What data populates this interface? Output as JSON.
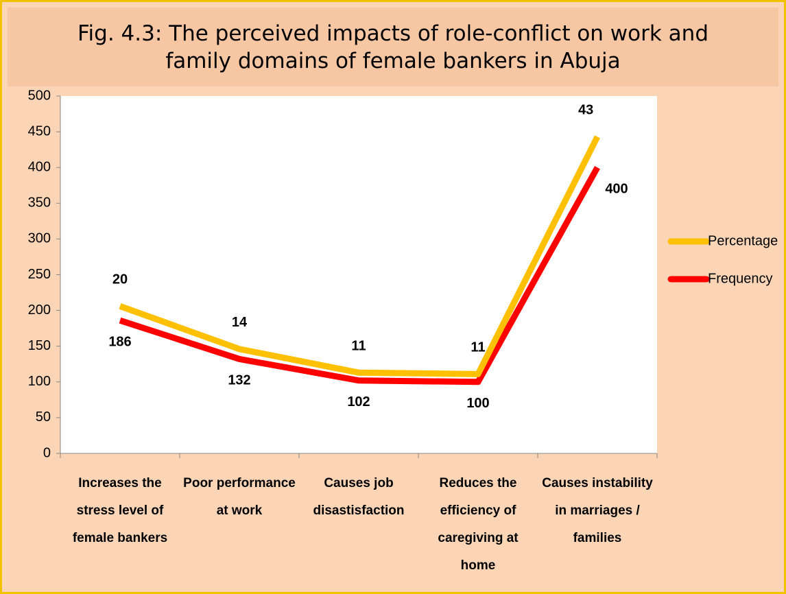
{
  "chart_data": {
    "type": "line",
    "stacked": true,
    "title": "Fig. 4.3: The perceived impacts of role-conflict on work and family domains of female bankers in Abuja",
    "categories": [
      "Increases the stress level of female bankers",
      "Poor performance at work",
      "Causes job disastisfaction",
      "Reduces the efficiency of caregiving at home",
      "Causes instability in marriages / families"
    ],
    "series": [
      {
        "name": "Frequency",
        "color": "#ff0000",
        "values": [
          186,
          132,
          102,
          100,
          400
        ]
      },
      {
        "name": "Percentage",
        "color": "#ffc000",
        "values": [
          20,
          14,
          11,
          11,
          43
        ]
      }
    ],
    "ylim": [
      0,
      500
    ],
    "yticks": [
      0,
      50,
      100,
      150,
      200,
      250,
      300,
      350,
      400,
      450,
      500
    ],
    "legend": "right"
  }
}
